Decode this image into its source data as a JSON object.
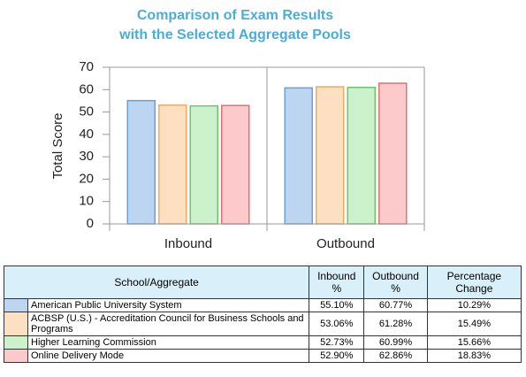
{
  "chart_data": {
    "type": "bar",
    "title": "Comparison of Exam Results",
    "subtitle": "with the Selected Aggregate Pools",
    "y_label": "Total Score",
    "categories": [
      "Inbound",
      "Outbound"
    ],
    "series": [
      {
        "name": "American Public University System",
        "color": "#bcd6f2",
        "border_color": "#6d9fd6",
        "values": [
          55.1,
          60.77
        ]
      },
      {
        "name": "ACBSP (U.S.) - Accreditation Council for Business Schools and Programs",
        "color": "#fde0c2",
        "border_color": "#f0aa62",
        "values": [
          53.06,
          61.28
        ]
      },
      {
        "name": "Higher Learning Commission",
        "color": "#ccf2cc",
        "border_color": "#6cc66c",
        "values": [
          52.73,
          60.99
        ]
      },
      {
        "name": "Online Delivery Mode",
        "color": "#fccaca",
        "border_color": "#e07272",
        "values": [
          52.9,
          62.86
        ]
      }
    ],
    "ylim": [
      0,
      70
    ],
    "yticks": [
      0,
      10,
      20,
      30,
      40,
      50,
      60,
      70
    ],
    "grid": false
  },
  "table": {
    "headers": [
      "School/Aggregate",
      "Inbound %",
      "Outbound %",
      "Percentage Change"
    ],
    "rows": [
      [
        "55.10%",
        "60.77%",
        "10.29%"
      ],
      [
        "53.06%",
        "61.28%",
        "15.49%"
      ],
      [
        "52.73%",
        "60.99%",
        "15.66%"
      ],
      [
        "52.90%",
        "62.86%",
        "18.83%"
      ]
    ]
  }
}
